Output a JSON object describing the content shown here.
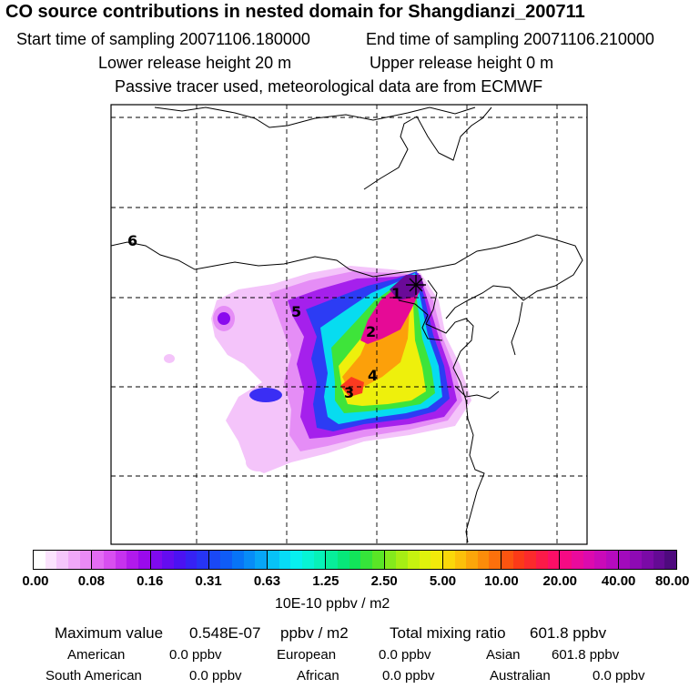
{
  "title": "CO  source contributions in nested domain for Shangdianzi_200711",
  "sampling": {
    "start_label": "Start time of sampling 20071106.180000",
    "end_label": "End time of sampling 20071106.210000"
  },
  "release": {
    "lower_label": "Lower release height   20 m",
    "upper_label": "Upper release height    0 m"
  },
  "note": "Passive tracer used, meteorological data are from ECMWF",
  "map_labels": [
    {
      "id": "1",
      "text": "1"
    },
    {
      "id": "2",
      "text": "2"
    },
    {
      "id": "3",
      "text": "3"
    },
    {
      "id": "4",
      "text": "4"
    },
    {
      "id": "5",
      "text": "5"
    },
    {
      "id": "6",
      "text": "6"
    }
  ],
  "colorbar": {
    "ticks": [
      "0.00",
      "0.08",
      "0.16",
      "0.31",
      "0.63",
      "1.25",
      "2.50",
      "5.00",
      "10.00",
      "20.00",
      "40.00",
      "80.00"
    ],
    "colors": [
      [
        "#ffffff",
        "#fbe3fd",
        "#f5c6fb",
        "#f0a8f8",
        "#ea8af5"
      ],
      [
        "#e36cf3",
        "#d84ff0",
        "#c632ee",
        "#b11aec",
        "#9a0aec"
      ],
      [
        "#7f0aee",
        "#640cf0",
        "#4b12f2",
        "#3622f4",
        "#2634f5"
      ],
      [
        "#1a48f6",
        "#0f5cf6",
        "#0774f6",
        "#078cf6",
        "#07a6f6"
      ],
      [
        "#07c2f6",
        "#07dcf6",
        "#07f0f0",
        "#07f4d4",
        "#07f2b8"
      ],
      [
        "#07ee9a",
        "#07e87a",
        "#12e45a",
        "#36e43a",
        "#5ae626"
      ],
      [
        "#84ea1c",
        "#a6ee14",
        "#c6f210",
        "#e0f20c",
        "#f2ea0a"
      ],
      [
        "#fad80a",
        "#fcc00a",
        "#fca60a",
        "#fc8c0a",
        "#fc700c"
      ],
      [
        "#fc5410",
        "#fc3a18",
        "#fc2a2c",
        "#fc1a48",
        "#fc0e66"
      ],
      [
        "#f60a84",
        "#ea0a9c",
        "#dc0aae",
        "#ca0ab8",
        "#b60abe"
      ],
      [
        "#a20abc",
        "#8e0ab4",
        "#7a0aa6",
        "#640a94",
        "#4e0a7e"
      ]
    ],
    "units": "10E-10 ppbv / m2"
  },
  "summary": {
    "max_label": "Maximum value",
    "max_value": "0.548E-07",
    "max_unit": "ppbv / m2",
    "total_label": "Total mixing ratio",
    "total_value": "601.8 ppbv"
  },
  "regions": [
    {
      "name": "American",
      "value": "0.0 ppbv"
    },
    {
      "name": "European",
      "value": "0.0 ppbv"
    },
    {
      "name": "Asian",
      "value": "601.8 ppbv"
    },
    {
      "name": "South American",
      "value": "0.0 ppbv"
    },
    {
      "name": "African",
      "value": "0.0 ppbv"
    },
    {
      "name": "Australian",
      "value": "0.0 ppbv"
    }
  ]
}
